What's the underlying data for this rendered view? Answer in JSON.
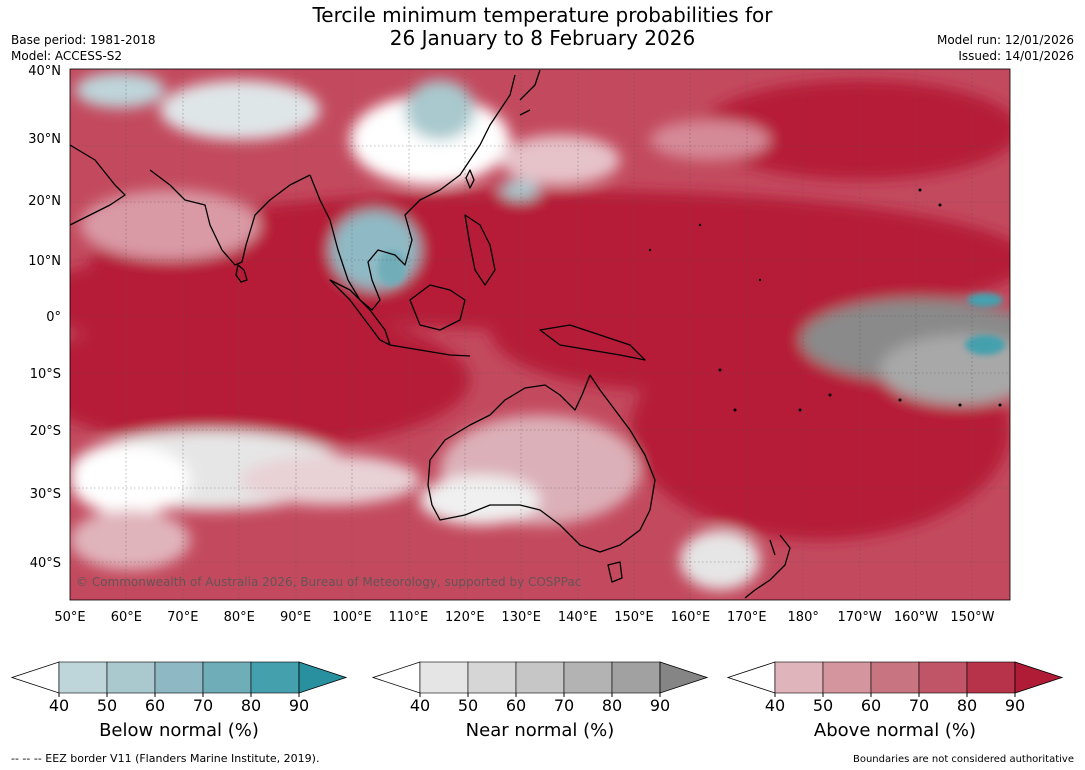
{
  "header": {
    "title_line1": "Tercile minimum temperature probabilities for",
    "title_line2": "26 January to 8 February 2026",
    "base_period": "Base period: 1981-2018",
    "model": "Model: ACCESS-S2",
    "model_run": "Model run: 12/01/2026",
    "issued": "Issued: 14/01/2026"
  },
  "map": {
    "lat_labels": [
      "40°N",
      "30°N",
      "20°N",
      "10°N",
      "0°",
      "10°S",
      "20°S",
      "30°S",
      "40°S"
    ],
    "lon_labels": [
      "50°E",
      "60°E",
      "70°E",
      "80°E",
      "90°E",
      "100°E",
      "110°E",
      "120°E",
      "130°E",
      "140°E",
      "150°E",
      "160°E",
      "170°E",
      "180°",
      "170°W",
      "160°W",
      "150°W"
    ],
    "copyright": "© Commonwealth of Australia 2026, Bureau of Meteorology, supported by COSPPac",
    "colors": {
      "above": "#b81f3a",
      "below": "#9fc6cf",
      "near_dark": "#858585",
      "land_line": "#000000"
    }
  },
  "legends": [
    {
      "title": "Below normal (%)",
      "ticks": [
        "40",
        "50",
        "60",
        "70",
        "80",
        "90"
      ],
      "colors": [
        "#bed5da",
        "#a9c9ce",
        "#8eb8c3",
        "#6fadb8",
        "#45a0ae",
        "#28909f"
      ]
    },
    {
      "title": "Near normal (%)",
      "ticks": [
        "40",
        "50",
        "60",
        "70",
        "80",
        "90"
      ],
      "colors": [
        "#e5e5e5",
        "#d6d6d6",
        "#c6c6c6",
        "#b3b3b3",
        "#a1a1a1",
        "#858585"
      ]
    },
    {
      "title": "Above normal (%)",
      "ticks": [
        "40",
        "50",
        "60",
        "70",
        "80",
        "90"
      ],
      "colors": [
        "#e0b4bb",
        "#d5959f",
        "#c87581",
        "#bf5566",
        "#b73349",
        "#b01c36"
      ]
    }
  ],
  "footer": {
    "eez_note": "--  --  -- EEZ border V11 (Flanders Marine Institute, 2019).",
    "disclaimer": "Boundaries are not considered authoritative"
  }
}
